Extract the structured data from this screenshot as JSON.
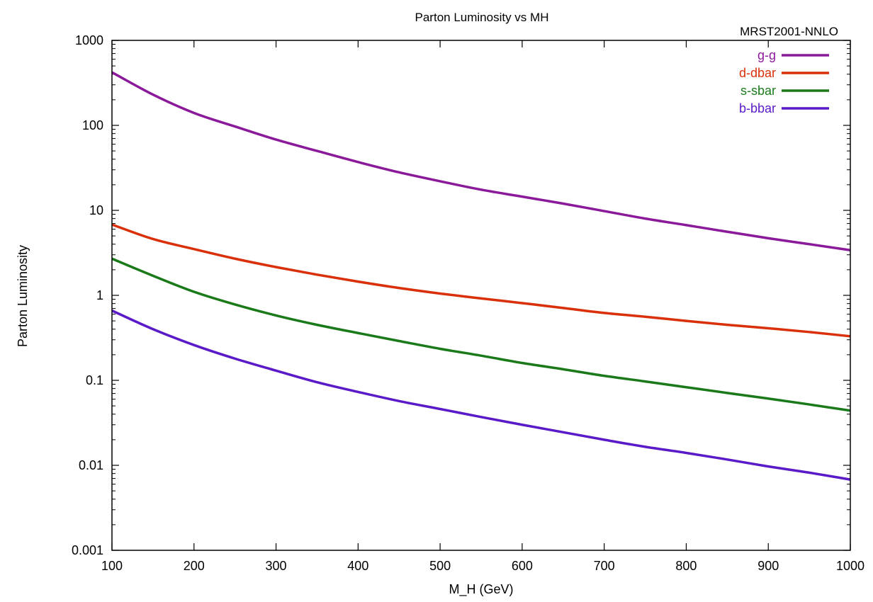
{
  "chart_data": {
    "type": "line",
    "title": "Parton Luminosity vs MH",
    "subtitle": "MRST2001-NNLO",
    "xlabel": "M_H (GeV)",
    "ylabel": "Parton Luminosity",
    "xlim": [
      100,
      1000
    ],
    "ylim": [
      0.001,
      1000
    ],
    "yscale": "log",
    "grid": false,
    "legend_position": "top-right",
    "x_ticks": [
      "100",
      "200",
      "300",
      "400",
      "500",
      "600",
      "700",
      "800",
      "900",
      "1000"
    ],
    "y_ticks": [
      "0.001",
      "0.01",
      "0.1",
      "1",
      "10",
      "100",
      "1000"
    ],
    "x": [
      100,
      150,
      200,
      250,
      300,
      350,
      400,
      450,
      500,
      550,
      600,
      650,
      700,
      750,
      800,
      850,
      900,
      950,
      1000
    ],
    "series": [
      {
        "name": "g-g",
        "color": "#8b1a9b",
        "values": [
          420,
          230,
          140,
          97,
          68,
          50,
          37,
          28,
          22,
          17.5,
          14.5,
          12,
          9.8,
          8.0,
          6.7,
          5.6,
          4.7,
          4.0,
          3.4
        ]
      },
      {
        "name": "d-dbar",
        "color": "#d9300a",
        "values": [
          6.8,
          4.6,
          3.5,
          2.7,
          2.15,
          1.75,
          1.45,
          1.22,
          1.05,
          0.92,
          0.81,
          0.71,
          0.62,
          0.56,
          0.5,
          0.45,
          0.41,
          0.37,
          0.33
        ]
      },
      {
        "name": "s-sbar",
        "color": "#1a7a1a",
        "values": [
          2.7,
          1.7,
          1.1,
          0.78,
          0.58,
          0.45,
          0.36,
          0.29,
          0.235,
          0.195,
          0.16,
          0.135,
          0.113,
          0.097,
          0.083,
          0.071,
          0.061,
          0.052,
          0.044
        ]
      },
      {
        "name": "b-bbar",
        "color": "#5a1ac8",
        "values": [
          0.66,
          0.4,
          0.26,
          0.18,
          0.13,
          0.095,
          0.073,
          0.057,
          0.046,
          0.037,
          0.03,
          0.0245,
          0.02,
          0.0165,
          0.014,
          0.0117,
          0.0097,
          0.0082,
          0.0068
        ]
      }
    ]
  }
}
